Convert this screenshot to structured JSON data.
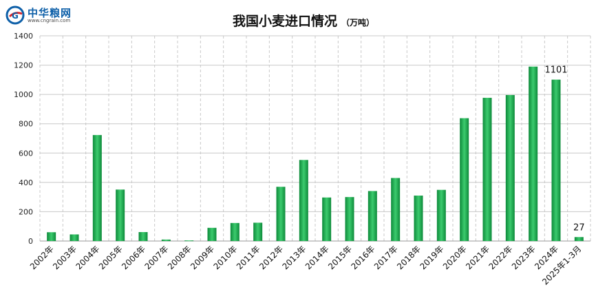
{
  "logo": {
    "name": "中华粮网",
    "url": "www.cngrain.com",
    "mark_letter": "G"
  },
  "title": "我国小麦进口情况",
  "unit": "（万吨）",
  "colors": {
    "bar_dark": "#0d8a3a",
    "bar_light": "#3ccb6e",
    "grid": "#c8c8c8",
    "logo_blue": "#0d5fa8",
    "logo_red": "#d8262c"
  },
  "chart_data": {
    "type": "bar",
    "title": "我国小麦进口情况",
    "ylabel": "",
    "xlabel": "",
    "ylim": [
      0,
      1400
    ],
    "yticks": [
      0,
      200,
      400,
      600,
      800,
      1000,
      1200,
      1400
    ],
    "grid": true,
    "categories": [
      "2002年",
      "2003年",
      "2004年",
      "2005年",
      "2006年",
      "2007年",
      "2008年",
      "2009年",
      "2010年",
      "2011年",
      "2012年",
      "2013年",
      "2014年",
      "2015年",
      "2016年",
      "2017年",
      "2018年",
      "2019年",
      "2020年",
      "2021年",
      "2022年",
      "2023年",
      "2024年",
      "2025年1-3月"
    ],
    "values": [
      60,
      45,
      723,
      351,
      61,
      10,
      4,
      90,
      123,
      125,
      370,
      553,
      297,
      300,
      341,
      430,
      310,
      349,
      838,
      977,
      996,
      1190,
      1101,
      27
    ],
    "data_labels": [
      {
        "index": 22,
        "text": "1101"
      },
      {
        "index": 23,
        "text": "27"
      }
    ]
  }
}
